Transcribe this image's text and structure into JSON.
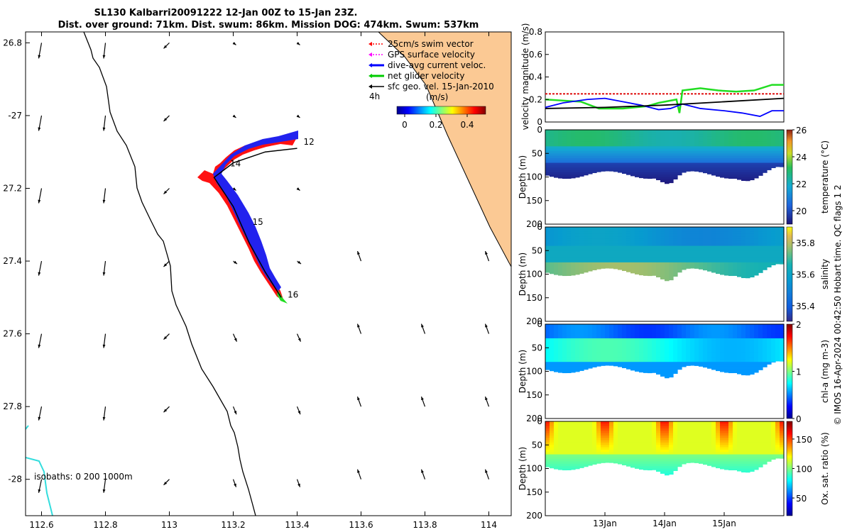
{
  "chart_data": [
    {
      "type": "map",
      "title_line1": "SL130 Kalbarri20091222 12-Jan 00Z to 15-Jan 23Z.",
      "title_line2": "Dist. over ground: 71km. Dist. swum: 86km. Mission DOG: 474km. Swum: 537km",
      "xlim": [
        112.55,
        114.07
      ],
      "ylim": [
        -28.1,
        -26.77
      ],
      "xticks": [
        112.6,
        112.8,
        113,
        113.2,
        113.4,
        113.6,
        113.8,
        114
      ],
      "xtick_labels": [
        "112.6",
        "112.8",
        "113",
        "113.2",
        "113.4",
        "113.6",
        "113.8",
        "114"
      ],
      "yticks": [
        -26.8,
        -27,
        -27.2,
        -27.4,
        -27.6,
        -27.8,
        -28
      ],
      "ytick_labels": [
        "26.8",
        "-27",
        "27.2",
        "27.4",
        "27.6",
        "27.8",
        "-28"
      ],
      "legend": [
        {
          "label": "25cm/s swim vector",
          "color": "#ff0000"
        },
        {
          "label": "GPS surface velocity",
          "color": "#ff00ff"
        },
        {
          "label": "dive-avg current veloc.",
          "color": "#0000ff"
        },
        {
          "label": "net glider velocity",
          "color": "#00cc00"
        },
        {
          "label": "sfc geo. vel. 15-Jan-2010",
          "color": "#000000"
        }
      ],
      "legend_extra": "4h",
      "colorbar_label": "(m/s)",
      "colorbar_ticks": [
        0,
        0.2,
        0.4
      ],
      "colorbar_tick_labels": [
        "0",
        "0.2",
        "0.4"
      ],
      "track": [
        [
          113.4,
          -27.09
        ],
        [
          113.3,
          -27.1
        ],
        [
          113.2,
          -27.13
        ],
        [
          113.14,
          -27.17
        ],
        [
          113.2,
          -27.25
        ],
        [
          113.25,
          -27.35
        ],
        [
          113.3,
          -27.43
        ],
        [
          113.35,
          -27.5
        ]
      ],
      "day_labels": [
        {
          "text": "12",
          "lon": 113.42,
          "lat": -27.08
        },
        {
          "text": "14",
          "lon": 113.19,
          "lat": -27.14
        },
        {
          "text": "15",
          "lon": 113.26,
          "lat": -27.3
        },
        {
          "text": "16",
          "lon": 113.37,
          "lat": -27.5
        }
      ],
      "isobath_note": "isobaths: 0   200  1000m"
    },
    {
      "type": "line",
      "ylabel": "velocity magnitude (m/s)",
      "ylim": [
        0,
        0.8
      ],
      "yticks": [
        0,
        0.2,
        0.4,
        0.6,
        0.8
      ],
      "ytick_labels": [
        "0",
        "0.2",
        "0.4",
        "0.6",
        "0.8"
      ],
      "x_range_days": [
        12.0,
        16.0
      ],
      "series": [
        {
          "name": "swim",
          "color": "#dd0000",
          "x": [
            12.0,
            16.0
          ],
          "values": [
            0.25,
            0.25
          ]
        },
        {
          "name": "net glider",
          "color": "#22dd22",
          "x": [
            12.0,
            12.6,
            12.9,
            13.3,
            13.7,
            13.9,
            14.2,
            14.25,
            14.3,
            14.6,
            14.9,
            15.2,
            15.5,
            15.8,
            16.0
          ],
          "values": [
            0.2,
            0.18,
            0.12,
            0.12,
            0.14,
            0.17,
            0.2,
            0.08,
            0.28,
            0.3,
            0.28,
            0.27,
            0.28,
            0.33,
            0.33
          ]
        },
        {
          "name": "dive-avg",
          "color": "#0000ff",
          "x": [
            12.0,
            12.3,
            12.7,
            13.0,
            13.3,
            13.6,
            13.9,
            14.1,
            14.3,
            14.6,
            15.0,
            15.3,
            15.6,
            15.8,
            16.0
          ],
          "values": [
            0.13,
            0.17,
            0.2,
            0.21,
            0.18,
            0.15,
            0.11,
            0.12,
            0.16,
            0.12,
            0.1,
            0.08,
            0.05,
            0.1,
            0.1
          ]
        },
        {
          "name": "sfc geo",
          "color": "#000000",
          "x": [
            12.0,
            13.0,
            14.0,
            15.0,
            16.0
          ],
          "values": [
            0.12,
            0.13,
            0.15,
            0.18,
            0.21
          ]
        }
      ]
    },
    {
      "type": "heatmap",
      "variable": "temperature",
      "cbar_label": "temperature (°C)",
      "clim": [
        19,
        26
      ],
      "cbar_ticks": [
        20,
        22,
        24,
        26
      ],
      "cbar_tick_labels": [
        "20",
        "22",
        "24",
        "26"
      ],
      "ylabel": "Depth (m)",
      "ylim": [
        0,
        200
      ],
      "yticks": [
        0,
        50,
        100,
        150,
        200
      ],
      "ytick_labels": [
        "0",
        "50",
        "100",
        "150",
        "200"
      ]
    },
    {
      "type": "heatmap",
      "variable": "salinity",
      "cbar_label": "salinity",
      "clim": [
        35.3,
        35.9
      ],
      "cbar_ticks": [
        35.4,
        35.6,
        35.8
      ],
      "cbar_tick_labels": [
        "35.4",
        "35.6",
        "35.8"
      ],
      "ylabel": "Depth (m)",
      "ylim": [
        0,
        200
      ],
      "yticks": [
        0,
        50,
        100,
        150,
        200
      ],
      "ytick_labels": [
        "0",
        "50",
        "100",
        "150",
        "200"
      ]
    },
    {
      "type": "heatmap",
      "variable": "chl",
      "cbar_label": "chl-a (mg m-3)",
      "clim": [
        0,
        2
      ],
      "cbar_ticks": [
        0,
        1,
        2
      ],
      "cbar_tick_labels": [
        "0",
        "1",
        "2"
      ],
      "ylabel": "Depth (m)",
      "ylim": [
        0,
        200
      ],
      "yticks": [
        0,
        50,
        100,
        150,
        200
      ],
      "ytick_labels": [
        "0",
        "50",
        "100",
        "150",
        "200"
      ]
    },
    {
      "type": "heatmap",
      "variable": "oxygen",
      "cbar_label": "Ox. sat. ratio (%)",
      "clim": [
        20,
        180
      ],
      "cbar_ticks": [
        50,
        100,
        150
      ],
      "cbar_tick_labels": [
        "50",
        "100",
        "150"
      ],
      "ylabel": "Depth (m)",
      "ylim": [
        0,
        200
      ],
      "yticks": [
        0,
        50,
        100,
        150,
        200
      ],
      "ytick_labels": [
        "0",
        "50",
        "100",
        "150",
        "200"
      ],
      "xticks_days": [
        13,
        14,
        15
      ],
      "xtick_labels": [
        "13Jan",
        "14Jan",
        "15Jan"
      ]
    }
  ],
  "qc_flags_label": "QC flags",
  "qc_flag_values": [
    "1",
    "2"
  ],
  "footer": "© IMOS 16-Apr-2024 00:42:50 Hobart time."
}
